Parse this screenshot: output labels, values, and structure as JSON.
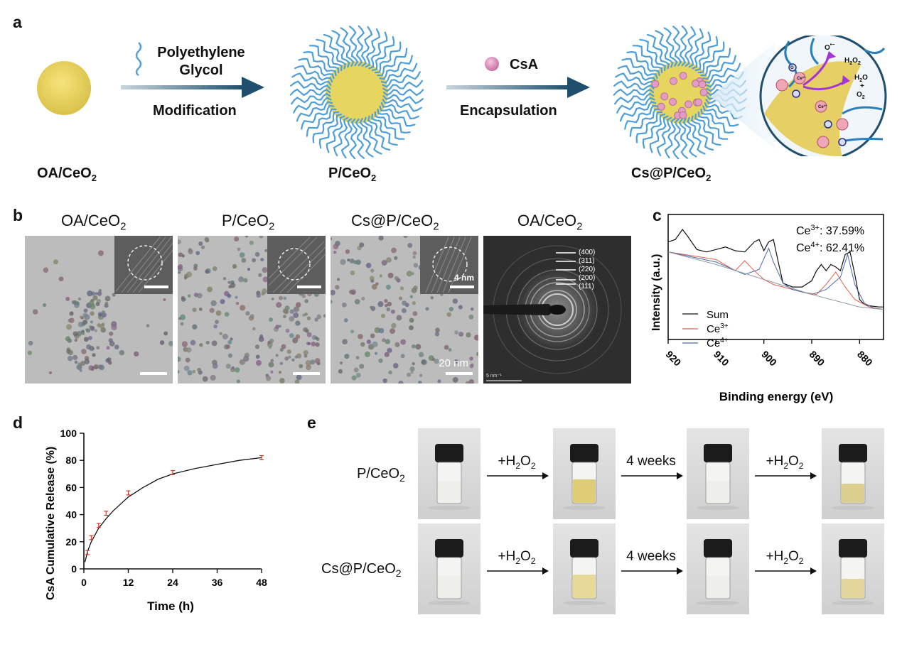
{
  "panel_a": {
    "letter": "a",
    "steps": [
      {
        "line1": "Polyethylene",
        "line2": "Glycol",
        "below": "Modification"
      },
      {
        "line1": "CsA",
        "line2": "",
        "below": "Encapsulation"
      }
    ],
    "labels": [
      "OA/CeO",
      "P/CeO",
      "Cs@P/CeO"
    ],
    "label_sub": "2",
    "zoom": {
      "o2minus": "O",
      "o2minus_sup": "•−",
      "h2o2": "H",
      "h2o2_a": "2",
      "h2o2_b": "O",
      "h2o2_c": "2",
      "h2o": "H",
      "h2o_a": "2",
      "h2o_b": "O",
      "plus": "+",
      "o2": "O",
      "o2_a": "2",
      "ce4": "Ce",
      "ce4_sup": "4+",
      "ce3": "Ce",
      "ce3_sup": "3+",
      "o_label": "O"
    }
  },
  "panel_b": {
    "letter": "b",
    "titles": [
      "OA/CeO",
      "P/CeO",
      "Cs@P/CeO",
      "OA/CeO"
    ],
    "title_sub": "2",
    "inset_scale_label": "4 nm",
    "scale_label": "20 nm",
    "saed_rings": [
      "(400)",
      "(311)",
      "(220)",
      "(200)",
      "(111)"
    ],
    "saed_scale": "5 nm⁻¹"
  },
  "panel_c": {
    "letter": "c",
    "annotation1": "Ce",
    "annotation1_sup": "3+",
    "annotation1_val": ": 37.59%",
    "annotation2": "Ce",
    "annotation2_sup": "4+",
    "annotation2_val": ": 62.41%",
    "legend": [
      {
        "name": "Sum",
        "sup": "",
        "color": "#111111"
      },
      {
        "name": "Ce",
        "sup": "3+",
        "color": "#e0604a"
      },
      {
        "name": "Ce",
        "sup": "4+",
        "color": "#4a68a8"
      }
    ],
    "ylabel": "Intensity (a.u.)",
    "xlabel": "Binding energy (eV)"
  },
  "panel_d": {
    "letter": "d",
    "ylabel": "CsA Cumulative Release (%)",
    "xlabel": "Time (h)"
  },
  "panel_e": {
    "letter": "e",
    "rows": [
      {
        "label": "P/CeO",
        "sub": "2",
        "tints": [
          "none",
          "#d9c560",
          "none",
          "#d7c77c"
        ]
      },
      {
        "label": "Cs@P/CeO",
        "sub": "2",
        "tints": [
          "none",
          "#e3d38a",
          "none",
          "#e1d08c"
        ]
      }
    ],
    "arrows": [
      {
        "main": "+H",
        "sub1": "2",
        "mid": "O",
        "sub2": "2"
      },
      {
        "main": "4 weeks",
        "sub1": "",
        "mid": "",
        "sub2": ""
      },
      {
        "main": "+H",
        "sub1": "2",
        "mid": "O",
        "sub2": "2"
      }
    ]
  },
  "chart_data": [
    {
      "type": "line",
      "panel": "c",
      "xlabel": "Binding energy (eV)",
      "ylabel": "Intensity (a.u.)",
      "xlim": [
        920,
        875
      ],
      "x_ticks": [
        920,
        910,
        900,
        890,
        880
      ],
      "axis_reversed": true,
      "series": [
        {
          "name": "Sum",
          "x": [
            920,
            918.5,
            917,
            916,
            914,
            912,
            910,
            908,
            906,
            904,
            902,
            901,
            900,
            899,
            898,
            897,
            896,
            894,
            892,
            890,
            889,
            888,
            887,
            886,
            885,
            884,
            883,
            882,
            881,
            880,
            879,
            878,
            876,
            875
          ],
          "y": [
            0.78,
            0.8,
            0.88,
            0.83,
            0.72,
            0.7,
            0.72,
            0.74,
            0.71,
            0.7,
            0.78,
            0.8,
            0.71,
            0.78,
            0.8,
            0.62,
            0.45,
            0.42,
            0.42,
            0.47,
            0.55,
            0.6,
            0.55,
            0.6,
            0.58,
            0.55,
            0.68,
            0.7,
            0.52,
            0.32,
            0.28,
            0.27,
            0.26,
            0.26
          ]
        },
        {
          "name": "Ce3+",
          "x": [
            920,
            910,
            906,
            904,
            902,
            900,
            898,
            896,
            892,
            889,
            887,
            885,
            883,
            881,
            878,
            875
          ],
          "y": [
            0.7,
            0.64,
            0.55,
            0.63,
            0.55,
            0.48,
            0.44,
            0.42,
            0.38,
            0.36,
            0.44,
            0.54,
            0.42,
            0.32,
            0.26,
            0.24
          ]
        },
        {
          "name": "Ce4+",
          "x": [
            920,
            910,
            904,
            901,
            899,
            898,
            896,
            894,
            890,
            887,
            884,
            882.5,
            881,
            879,
            877,
            875
          ],
          "y": [
            0.7,
            0.62,
            0.52,
            0.56,
            0.73,
            0.62,
            0.45,
            0.4,
            0.36,
            0.4,
            0.5,
            0.68,
            0.44,
            0.29,
            0.25,
            0.24
          ]
        },
        {
          "name": "Background",
          "x": [
            920,
            910,
            900,
            890,
            880,
            875
          ],
          "y": [
            0.7,
            0.6,
            0.48,
            0.36,
            0.26,
            0.24
          ]
        }
      ]
    },
    {
      "type": "line",
      "panel": "d",
      "xlabel": "Time (h)",
      "ylabel": "CsA Cumulative Release (%)",
      "xlim": [
        0,
        48
      ],
      "ylim": [
        0,
        100
      ],
      "x_ticks": [
        0,
        12,
        24,
        36,
        48
      ],
      "y_ticks": [
        0,
        20,
        40,
        60,
        80,
        100
      ],
      "points": [
        {
          "x": 1,
          "y": 12,
          "err": 1.5
        },
        {
          "x": 2,
          "y": 23,
          "err": 1.5
        },
        {
          "x": 4,
          "y": 32,
          "err": 1.5
        },
        {
          "x": 6,
          "y": 41,
          "err": 1.5
        },
        {
          "x": 12,
          "y": 56,
          "err": 1.5
        },
        {
          "x": 24,
          "y": 71,
          "err": 1.5
        },
        {
          "x": 48,
          "y": 82,
          "err": 1.5
        }
      ],
      "fit": {
        "x": [
          0.3,
          1,
          2,
          3,
          4,
          6,
          8,
          10,
          12,
          16,
          20,
          24,
          30,
          36,
          42,
          48
        ],
        "y": [
          5,
          13,
          20,
          25,
          30,
          37,
          43,
          48,
          53,
          60,
          66,
          70,
          74,
          77,
          80,
          82
        ]
      }
    }
  ]
}
